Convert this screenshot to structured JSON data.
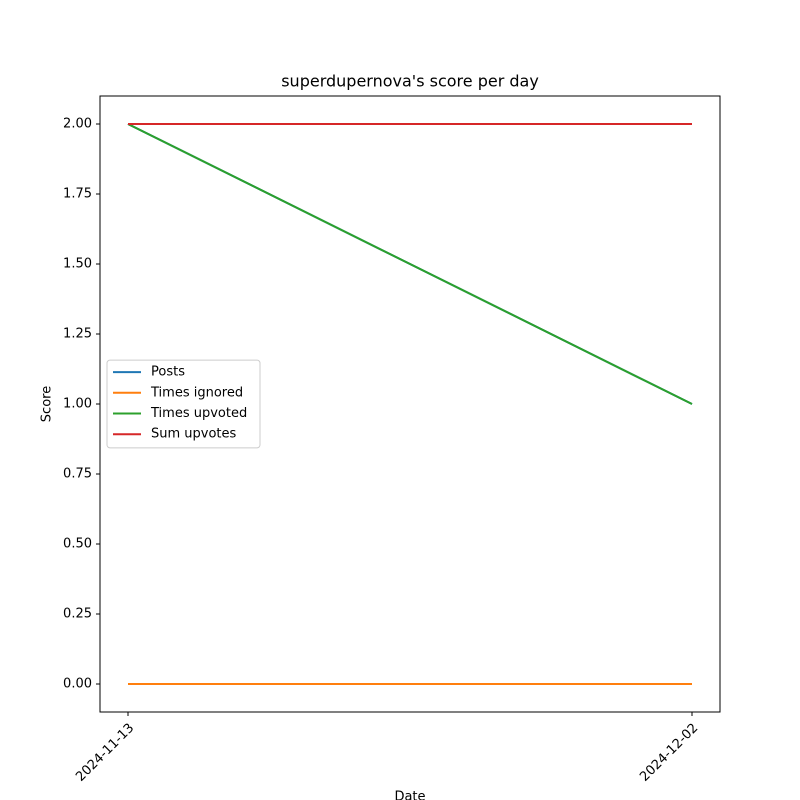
{
  "chart_data": {
    "type": "line",
    "title": "superdupernova's score per day",
    "x_label": "Date",
    "y_label": "Score",
    "x": [
      "2024-11-13",
      "2024-12-02"
    ],
    "series": [
      {
        "name": "Posts",
        "color": "#1f77b4",
        "values": [
          2,
          1
        ]
      },
      {
        "name": "Times ignored",
        "color": "#ff7f0e",
        "values": [
          0,
          0
        ]
      },
      {
        "name": "Times upvoted",
        "color": "#2ca02c",
        "values": [
          2,
          1
        ]
      },
      {
        "name": "Sum upvotes",
        "color": "#d62728",
        "values": [
          2,
          2
        ]
      }
    ],
    "ylim": [
      -0.1,
      2.1
    ],
    "yticks": [
      {
        "value": 0,
        "label": "0.00"
      },
      {
        "value": 0.25,
        "label": "0.25"
      },
      {
        "value": 0.5,
        "label": "0.50"
      },
      {
        "value": 0.75,
        "label": "0.75"
      },
      {
        "value": 1,
        "label": "1.00"
      },
      {
        "value": 1.25,
        "label": "1.25"
      },
      {
        "value": 1.5,
        "label": "1.50"
      },
      {
        "value": 1.75,
        "label": "1.75"
      },
      {
        "value": 2,
        "label": "2.00"
      }
    ],
    "legend": "center left",
    "grid": false
  }
}
